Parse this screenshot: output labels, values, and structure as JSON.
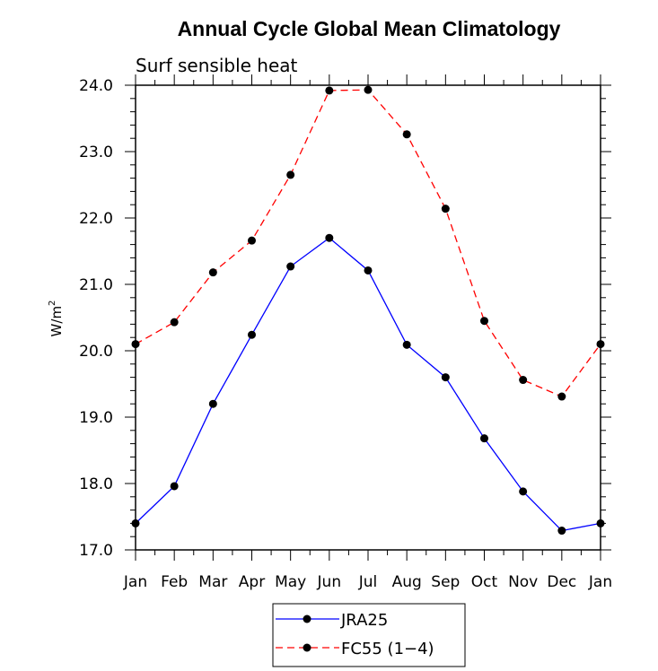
{
  "chart_data": {
    "type": "line",
    "title": "Annual Cycle Global Mean Climatology",
    "subtitle": "Surf sensible heat",
    "ylabel_base": "W/m",
    "ylabel_sup": "2",
    "xlabel": "",
    "categories": [
      "Jan",
      "Feb",
      "Mar",
      "Apr",
      "May",
      "Jun",
      "Jul",
      "Aug",
      "Sep",
      "Oct",
      "Nov",
      "Dec",
      "Jan"
    ],
    "ylim": [
      17.0,
      24.0
    ],
    "yticks": [
      "17.0",
      "18.0",
      "19.0",
      "20.0",
      "21.0",
      "22.0",
      "23.0",
      "24.0"
    ],
    "grid": false,
    "legend_position": "bottom-center",
    "series": [
      {
        "name": "JRA25",
        "color": "#0000ff",
        "dashed": false,
        "values": [
          17.4,
          17.96,
          19.2,
          20.24,
          21.27,
          21.7,
          21.21,
          20.09,
          19.6,
          18.68,
          17.88,
          17.29,
          17.4
        ]
      },
      {
        "name": "FC55 (1−4)",
        "color": "#ff0000",
        "dashed": true,
        "values": [
          20.1,
          20.43,
          21.18,
          21.66,
          22.65,
          23.92,
          23.93,
          23.26,
          22.14,
          20.45,
          19.56,
          19.31,
          20.1
        ]
      }
    ]
  }
}
